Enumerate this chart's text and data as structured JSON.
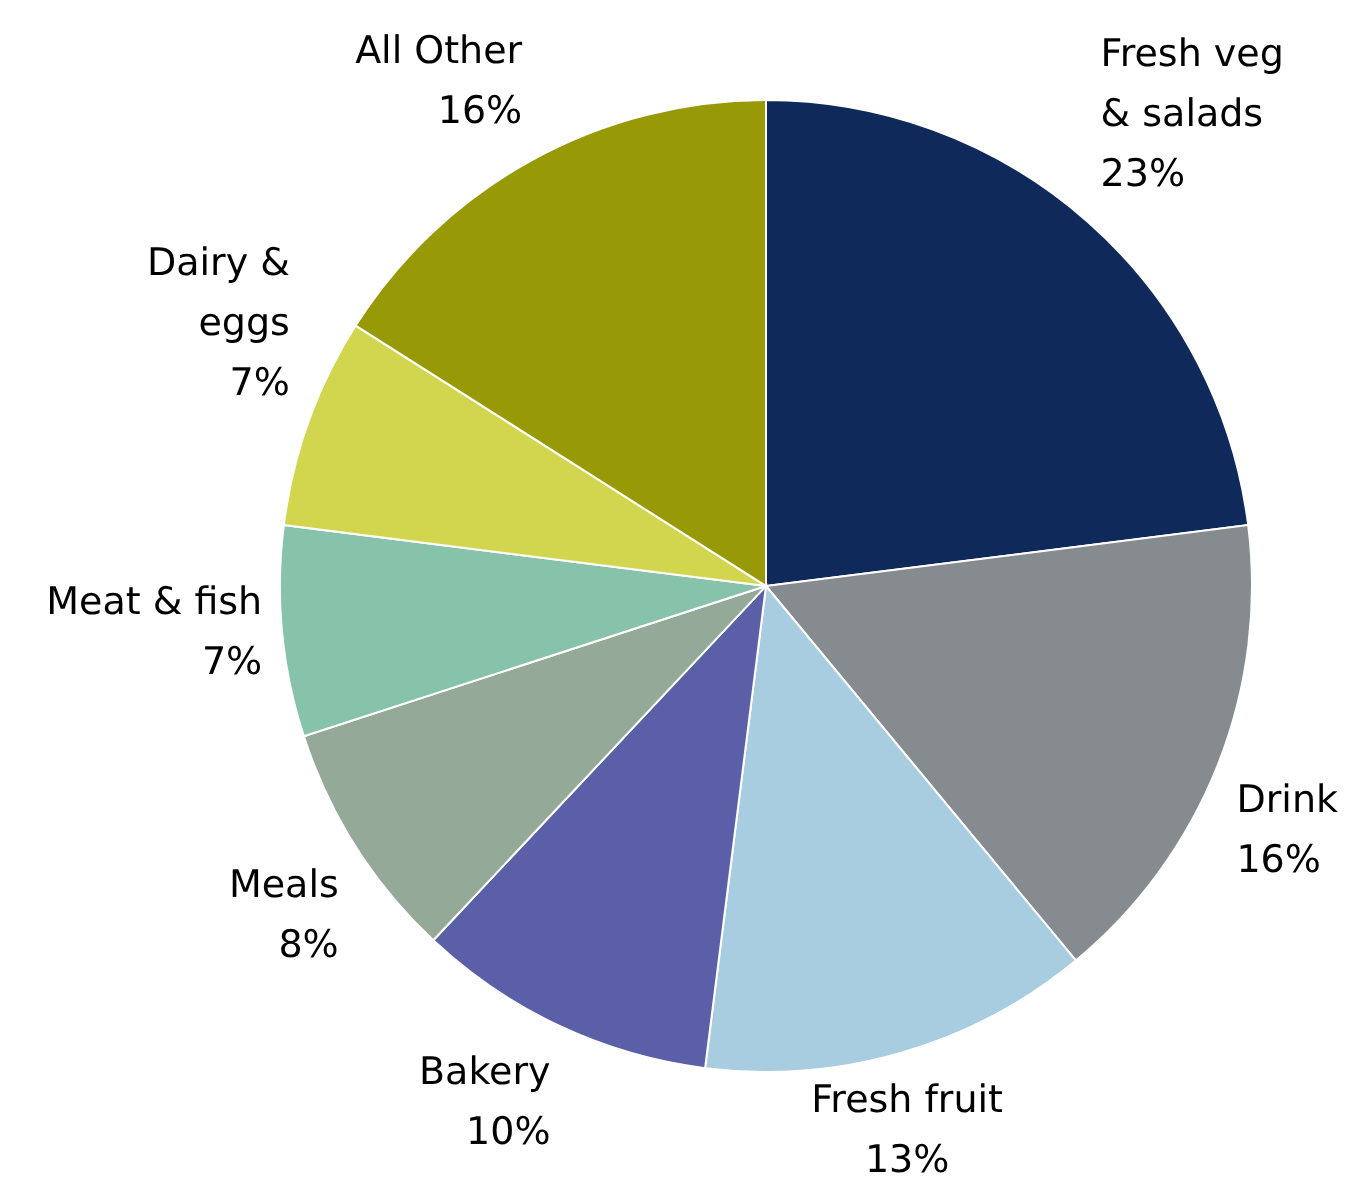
{
  "chart_data": {
    "type": "pie",
    "categories": [
      "Fresh veg\n& salads",
      "Drink",
      "Fresh fruit",
      "Bakery",
      "Meals",
      "Meat & fish",
      "Dairy &\neggs",
      "All Other"
    ],
    "values": [
      23,
      16,
      13,
      10,
      8,
      7,
      7,
      16
    ],
    "colors": [
      "#0f2a5a",
      "#858b8e",
      "#a8cde1",
      "#5a5fa8",
      "#94a998",
      "#86c3aa",
      "#d2d64e",
      "#979a06"
    ],
    "value_labels": [
      "23%",
      "16%",
      "13%",
      "10%",
      "8%",
      "7%",
      "7%",
      "16%"
    ]
  }
}
